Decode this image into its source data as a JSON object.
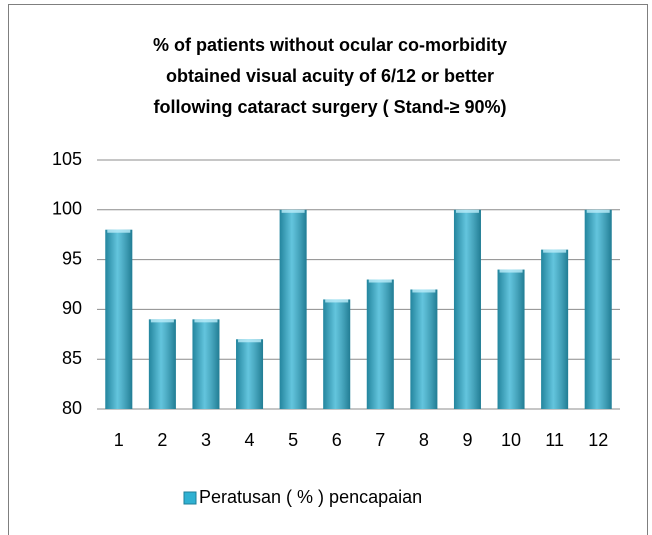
{
  "chart_data": {
    "type": "bar",
    "title": [
      "% of patients without ocular co-morbidity",
      "obtained visual acuity of 6/12 or better",
      "following cataract surgery ( Stand-≥ 90%)"
    ],
    "categories": [
      "1",
      "2",
      "3",
      "4",
      "5",
      "6",
      "7",
      "8",
      "9",
      "10",
      "11",
      "12"
    ],
    "series": [
      {
        "name": "Peratusan ( % ) pencapaian",
        "color": "#2fb1d2",
        "values": [
          98,
          89,
          89,
          87,
          100,
          91,
          93,
          92,
          100,
          94,
          96,
          100
        ]
      }
    ],
    "ylim": [
      80,
      105
    ],
    "yticks": [
      80,
      85,
      90,
      95,
      100,
      105
    ],
    "grid": true,
    "legend": "bottom"
  }
}
